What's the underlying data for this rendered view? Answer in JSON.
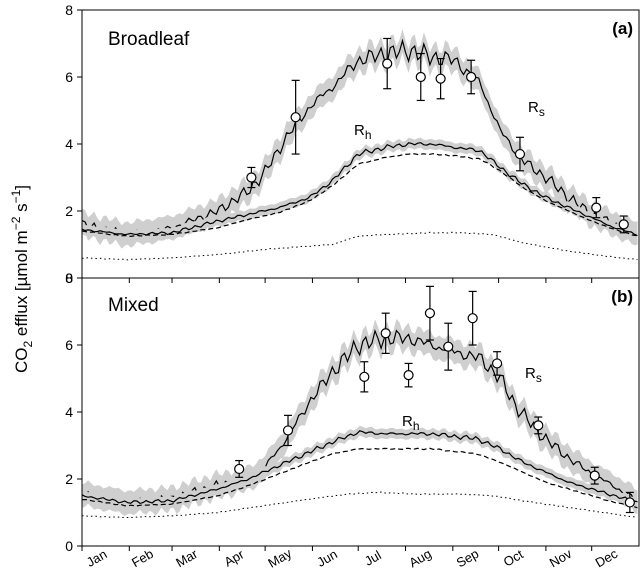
{
  "chart_data": {
    "type": "line",
    "x_categories": [
      "Jan",
      "Feb",
      "Mar",
      "Apr",
      "May",
      "Jun",
      "Jul",
      "Aug",
      "Sep",
      "Oct",
      "Nov",
      "Dec"
    ],
    "ylabel": {
      "prefix": "CO",
      "subscript": "2",
      "middle": " efflux [µmol m",
      "sup1": "−2",
      "middle2": " s",
      "sup2": "−1",
      "suffix": "]"
    },
    "ylim": [
      0,
      8
    ],
    "yticks": [
      "0",
      "2",
      "4",
      "6",
      "8"
    ],
    "panels": [
      {
        "tag": "(a)",
        "name": "Broadleaf",
        "rs_label": "R",
        "rs_sub": "s",
        "rh_label": "R",
        "rh_sub": "h",
        "series": [
          {
            "key": "Rs",
            "values": [
              [
                1,
                1.6
              ],
              [
                30,
                1.3
              ],
              [
                60,
                1.5
              ],
              [
                90,
                2.0
              ],
              [
                110,
                2.6
              ],
              [
                120,
                3.1
              ],
              [
                135,
                4.2
              ],
              [
                150,
                5.1
              ],
              [
                165,
                5.7
              ],
              [
                182,
                6.5
              ],
              [
                200,
                6.7
              ],
              [
                215,
                6.8
              ],
              [
                230,
                6.6
              ],
              [
                245,
                6.5
              ],
              [
                262,
                5.8
              ],
              [
                275,
                4.4
              ],
              [
                290,
                3.5
              ],
              [
                305,
                3.0
              ],
              [
                320,
                2.4
              ],
              [
                335,
                1.9
              ],
              [
                350,
                1.6
              ],
              [
                365,
                1.3
              ]
            ],
            "band": 0.35
          },
          {
            "key": "Rh",
            "values": [
              [
                1,
                1.45
              ],
              [
                30,
                1.3
              ],
              [
                60,
                1.35
              ],
              [
                90,
                1.7
              ],
              [
                110,
                1.9
              ],
              [
                130,
                2.1
              ],
              [
                150,
                2.4
              ],
              [
                165,
                2.9
              ],
              [
                182,
                3.7
              ],
              [
                200,
                3.9
              ],
              [
                215,
                4.0
              ],
              [
                230,
                4.0
              ],
              [
                245,
                3.9
              ],
              [
                262,
                3.8
              ],
              [
                275,
                3.3
              ],
              [
                290,
                2.8
              ],
              [
                305,
                2.4
              ],
              [
                320,
                2.1
              ],
              [
                335,
                1.8
              ],
              [
                350,
                1.5
              ],
              [
                365,
                1.3
              ]
            ],
            "band": 0.15
          },
          {
            "key": "dashed",
            "values": [
              [
                1,
                1.4
              ],
              [
                30,
                1.25
              ],
              [
                60,
                1.3
              ],
              [
                90,
                1.5
              ],
              [
                110,
                1.75
              ],
              [
                130,
                1.95
              ],
              [
                150,
                2.3
              ],
              [
                165,
                2.75
              ],
              [
                182,
                3.4
              ],
              [
                200,
                3.6
              ],
              [
                215,
                3.7
              ],
              [
                230,
                3.7
              ],
              [
                245,
                3.65
              ],
              [
                262,
                3.55
              ],
              [
                275,
                3.2
              ],
              [
                290,
                2.7
              ],
              [
                305,
                2.3
              ],
              [
                320,
                2.0
              ],
              [
                335,
                1.7
              ],
              [
                350,
                1.45
              ],
              [
                365,
                1.25
              ]
            ]
          },
          {
            "key": "dotted",
            "values": [
              [
                1,
                0.6
              ],
              [
                30,
                0.55
              ],
              [
                60,
                0.6
              ],
              [
                90,
                0.7
              ],
              [
                120,
                0.85
              ],
              [
                150,
                0.95
              ],
              [
                165,
                1.0
              ],
              [
                182,
                1.25
              ],
              [
                200,
                1.3
              ],
              [
                230,
                1.35
              ],
              [
                250,
                1.35
              ],
              [
                270,
                1.3
              ],
              [
                290,
                1.05
              ],
              [
                320,
                0.8
              ],
              [
                350,
                0.62
              ],
              [
                365,
                0.55
              ]
            ]
          }
        ],
        "observations": [
          {
            "x": 112,
            "y": 3.0,
            "err": 0.3
          },
          {
            "x": 141,
            "y": 4.8,
            "err": 1.1
          },
          {
            "x": 201,
            "y": 6.4,
            "err": 0.75
          },
          {
            "x": 223,
            "y": 6.0,
            "err": 0.7
          },
          {
            "x": 236,
            "y": 5.95,
            "err": 0.6
          },
          {
            "x": 256,
            "y": 6.0,
            "err": 0.5
          },
          {
            "x": 288,
            "y": 3.7,
            "err": 0.5
          },
          {
            "x": 338,
            "y": 2.1,
            "err": 0.3
          },
          {
            "x": 356,
            "y": 1.6,
            "err": 0.25
          }
        ]
      },
      {
        "tag": "(b)",
        "name": "Mixed",
        "rs_label": "R",
        "rs_sub": "s",
        "rh_label": "R",
        "rh_sub": "h",
        "series": [
          {
            "key": "Rs",
            "values": [
              [
                1,
                1.55
              ],
              [
                30,
                1.3
              ],
              [
                60,
                1.4
              ],
              [
                90,
                1.8
              ],
              [
                110,
                2.0
              ],
              [
                120,
                2.3
              ],
              [
                135,
                3.2
              ],
              [
                150,
                4.3
              ],
              [
                165,
                5.2
              ],
              [
                182,
                6.0
              ],
              [
                200,
                6.2
              ],
              [
                215,
                6.2
              ],
              [
                230,
                6.0
              ],
              [
                245,
                5.8
              ],
              [
                262,
                5.6
              ],
              [
                275,
                5.0
              ],
              [
                285,
                4.2
              ],
              [
                300,
                3.4
              ],
              [
                315,
                2.8
              ],
              [
                330,
                2.3
              ],
              [
                345,
                1.9
              ],
              [
                360,
                1.5
              ],
              [
                365,
                1.3
              ]
            ],
            "band": 0.35
          },
          {
            "key": "Rh",
            "values": [
              [
                1,
                1.5
              ],
              [
                30,
                1.3
              ],
              [
                60,
                1.35
              ],
              [
                90,
                1.7
              ],
              [
                110,
                2.0
              ],
              [
                130,
                2.4
              ],
              [
                150,
                2.8
              ],
              [
                165,
                3.1
              ],
              [
                182,
                3.4
              ],
              [
                200,
                3.35
              ],
              [
                230,
                3.35
              ],
              [
                260,
                3.2
              ],
              [
                275,
                2.9
              ],
              [
                290,
                2.5
              ],
              [
                305,
                2.2
              ],
              [
                320,
                1.9
              ],
              [
                335,
                1.7
              ],
              [
                350,
                1.5
              ],
              [
                365,
                1.3
              ]
            ],
            "band": 0.15
          },
          {
            "key": "dashed",
            "values": [
              [
                1,
                1.4
              ],
              [
                30,
                1.2
              ],
              [
                60,
                1.25
              ],
              [
                90,
                1.5
              ],
              [
                110,
                1.8
              ],
              [
                130,
                2.15
              ],
              [
                150,
                2.5
              ],
              [
                165,
                2.75
              ],
              [
                182,
                2.9
              ],
              [
                200,
                2.9
              ],
              [
                230,
                2.9
              ],
              [
                260,
                2.75
              ],
              [
                275,
                2.5
              ],
              [
                290,
                2.2
              ],
              [
                305,
                1.9
              ],
              [
                320,
                1.7
              ],
              [
                335,
                1.5
              ],
              [
                350,
                1.3
              ],
              [
                365,
                1.15
              ]
            ]
          },
          {
            "key": "dotted",
            "values": [
              [
                1,
                0.9
              ],
              [
                30,
                0.85
              ],
              [
                60,
                0.9
              ],
              [
                90,
                1.0
              ],
              [
                120,
                1.2
              ],
              [
                150,
                1.4
              ],
              [
                175,
                1.55
              ],
              [
                195,
                1.6
              ],
              [
                220,
                1.55
              ],
              [
                250,
                1.55
              ],
              [
                270,
                1.5
              ],
              [
                290,
                1.35
              ],
              [
                320,
                1.15
              ],
              [
                350,
                0.95
              ],
              [
                365,
                0.85
              ]
            ]
          }
        ],
        "observations": [
          {
            "x": 104,
            "y": 2.3,
            "err": 0.25
          },
          {
            "x": 136,
            "y": 3.45,
            "err": 0.45
          },
          {
            "x": 186,
            "y": 5.05,
            "err": 0.45
          },
          {
            "x": 200,
            "y": 6.35,
            "err": 0.6
          },
          {
            "x": 215,
            "y": 5.1,
            "err": 0.35
          },
          {
            "x": 229,
            "y": 6.95,
            "err": 0.8
          },
          {
            "x": 241,
            "y": 5.95,
            "err": 0.7
          },
          {
            "x": 257,
            "y": 6.8,
            "err": 0.8
          },
          {
            "x": 273,
            "y": 5.45,
            "err": 0.35
          },
          {
            "x": 300,
            "y": 3.6,
            "err": 0.25
          },
          {
            "x": 337,
            "y": 2.1,
            "err": 0.25
          },
          {
            "x": 360,
            "y": 1.3,
            "err": 0.3
          }
        ]
      }
    ]
  }
}
